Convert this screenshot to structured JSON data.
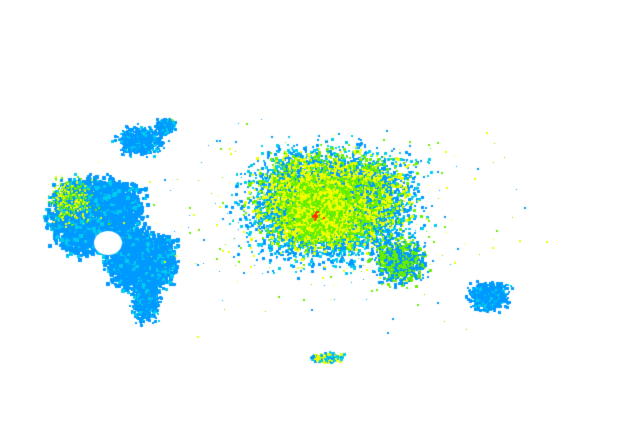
{
  "map": {
    "type": "point-density",
    "background": "#ffffff",
    "colors": {
      "low": "#0099ff",
      "mid_low": "#00ccee",
      "mid": "#66ee00",
      "high": "#eeff00",
      "peak": "#ff3300"
    }
  }
}
